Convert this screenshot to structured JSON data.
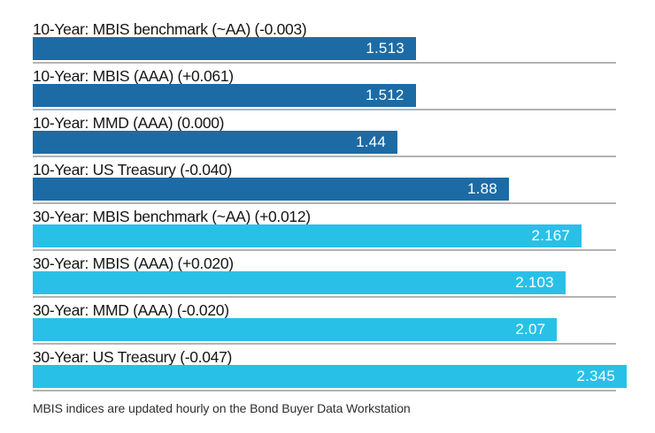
{
  "chart_data": {
    "type": "bar",
    "orientation": "horizontal",
    "title": "",
    "categories": [
      "10-Year: MBIS benchmark (~AA) (-0.003)",
      "10-Year: MBIS (AAA) (+0.061)",
      "10-Year: MMD (AAA) (0.000)",
      "10-Year: US Treasury (-0.040)",
      "30-Year: MBIS benchmark (~AA) (+0.012)",
      "30-Year: MBIS (AAA) (+0.020)",
      "30-Year: MMD (AAA) (-0.020)",
      "30-Year: US Treasury (-0.047)"
    ],
    "values": [
      1.513,
      1.512,
      1.44,
      1.88,
      2.167,
      2.103,
      2.07,
      2.345
    ],
    "value_labels": [
      "1.513",
      "1.512",
      "1.44",
      "1.88",
      "2.167",
      "2.103",
      "2.07",
      "2.345"
    ],
    "changes": [
      "-0.003",
      "+0.061",
      "0.000",
      "-0.040",
      "+0.012",
      "+0.020",
      "-0.020",
      "-0.047"
    ],
    "groups": [
      "10-year",
      "10-year",
      "10-year",
      "10-year",
      "30-year",
      "30-year",
      "30-year",
      "30-year"
    ],
    "colors": {
      "10-year": "#1d6ba5",
      "30-year": "#29c0e8",
      "separator": "#b3b3b6",
      "value_text": "#ffffff",
      "label_text": "#161616"
    },
    "xlim": [
      0,
      2.46
    ],
    "grid": "row-separator-lines",
    "legend": "none",
    "value_label_position": "inside-end"
  },
  "footer": {
    "note": "MBIS indices are updated hourly on the Bond Buyer Data Workstation"
  }
}
